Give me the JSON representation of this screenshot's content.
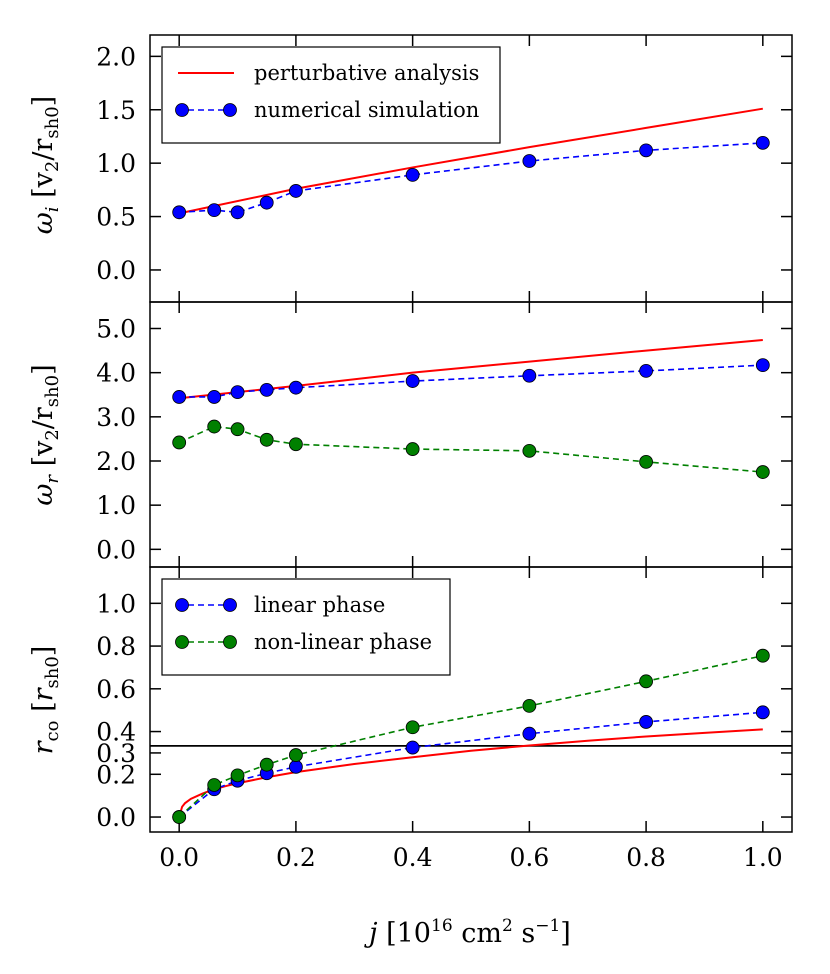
{
  "chart_data": [
    {
      "type": "line",
      "panel": "top",
      "ylabel": "ω_i [v2/rsh0]",
      "ylim": [
        -0.3,
        2.2
      ],
      "yticks": [
        0.0,
        0.5,
        1.0,
        1.5,
        2.0
      ],
      "ytick_labels": [
        "0.0",
        "0.5",
        "1.0",
        "1.5",
        "2.0"
      ],
      "xlim": [
        -0.05,
        1.05
      ],
      "legend_position": "top-left",
      "series": [
        {
          "name": "perturbative analysis",
          "style": "solid",
          "color": "#ff0000",
          "x": [
            0.0,
            0.2,
            0.4,
            0.6,
            0.8,
            1.0
          ],
          "y": [
            0.53,
            0.76,
            0.96,
            1.15,
            1.33,
            1.51
          ]
        },
        {
          "name": "numerical simulation",
          "style": "dashed-markers",
          "color": "#0000ff",
          "x": [
            0.0,
            0.06,
            0.1,
            0.15,
            0.2,
            0.4,
            0.6,
            0.8,
            1.0
          ],
          "y": [
            0.54,
            0.56,
            0.54,
            0.63,
            0.74,
            0.89,
            1.02,
            1.12,
            1.19
          ]
        }
      ]
    },
    {
      "type": "line",
      "panel": "middle",
      "ylabel": "ω_r [v2/rsh0]",
      "ylim": [
        -0.4,
        5.6
      ],
      "yticks": [
        0.0,
        1.0,
        2.0,
        3.0,
        4.0,
        5.0
      ],
      "ytick_labels": [
        "0.0",
        "1.0",
        "2.0",
        "3.0",
        "4.0",
        "5.0"
      ],
      "xlim": [
        -0.05,
        1.05
      ],
      "series": [
        {
          "style": "solid",
          "color": "#ff0000",
          "x": [
            0.0,
            0.2,
            0.4,
            0.6,
            0.8,
            1.0
          ],
          "y": [
            3.42,
            3.7,
            4.0,
            4.25,
            4.5,
            4.74
          ]
        },
        {
          "style": "dashed-markers",
          "color": "#0000ff",
          "x": [
            0.0,
            0.06,
            0.1,
            0.15,
            0.2,
            0.4,
            0.6,
            0.8,
            1.0
          ],
          "y": [
            3.45,
            3.45,
            3.56,
            3.61,
            3.66,
            3.81,
            3.93,
            4.04,
            4.17
          ]
        },
        {
          "style": "dashed-markers",
          "color": "#008000",
          "x": [
            0.0,
            0.06,
            0.1,
            0.15,
            0.2,
            0.4,
            0.6,
            0.8,
            1.0
          ],
          "y": [
            2.42,
            2.78,
            2.72,
            2.48,
            2.38,
            2.27,
            2.23,
            1.98,
            1.75
          ]
        }
      ]
    },
    {
      "type": "line",
      "panel": "bottom",
      "ylabel": "r_co [r_sh0]",
      "ylim": [
        -0.07,
        1.17
      ],
      "yticks": [
        0.0,
        0.2,
        0.3,
        0.4,
        0.6,
        0.8,
        1.0
      ],
      "ytick_labels": [
        "0.0",
        "0.2",
        "0.3",
        "0.4",
        "0.6",
        "0.8",
        "1.0"
      ],
      "xlim": [
        -0.05,
        1.05
      ],
      "xticks": [
        0.0,
        0.2,
        0.4,
        0.6,
        0.8,
        1.0
      ],
      "xtick_labels": [
        "0.0",
        "0.2",
        "0.4",
        "0.6",
        "0.8",
        "1.0"
      ],
      "xlabel": "j [10^16 cm^2 s^-1]",
      "hline": 0.333,
      "legend_position": "top-left",
      "series": [
        {
          "style": "solid",
          "color": "#ff0000",
          "x": [
            0.0,
            0.005,
            0.01,
            0.02,
            0.04,
            0.06,
            0.08,
            0.1,
            0.15,
            0.2,
            0.3,
            0.4,
            0.5,
            0.6,
            0.7,
            0.8,
            0.9,
            1.0
          ],
          "y": [
            0.0,
            0.048,
            0.065,
            0.085,
            0.11,
            0.13,
            0.145,
            0.158,
            0.186,
            0.21,
            0.248,
            0.28,
            0.31,
            0.335,
            0.357,
            0.377,
            0.394,
            0.41
          ]
        },
        {
          "name": "linear phase",
          "style": "dashed-markers",
          "color": "#0000ff",
          "x": [
            0.0,
            0.06,
            0.1,
            0.15,
            0.2,
            0.4,
            0.6,
            0.8,
            1.0
          ],
          "y": [
            0.0,
            0.13,
            0.17,
            0.205,
            0.235,
            0.325,
            0.39,
            0.445,
            0.49
          ]
        },
        {
          "name": "non-linear phase",
          "style": "dashed-markers",
          "color": "#008000",
          "x": [
            0.0,
            0.06,
            0.1,
            0.15,
            0.2,
            0.4,
            0.6,
            0.8,
            1.0
          ],
          "y": [
            0.0,
            0.15,
            0.195,
            0.245,
            0.29,
            0.42,
            0.52,
            0.635,
            0.755
          ]
        }
      ]
    }
  ]
}
